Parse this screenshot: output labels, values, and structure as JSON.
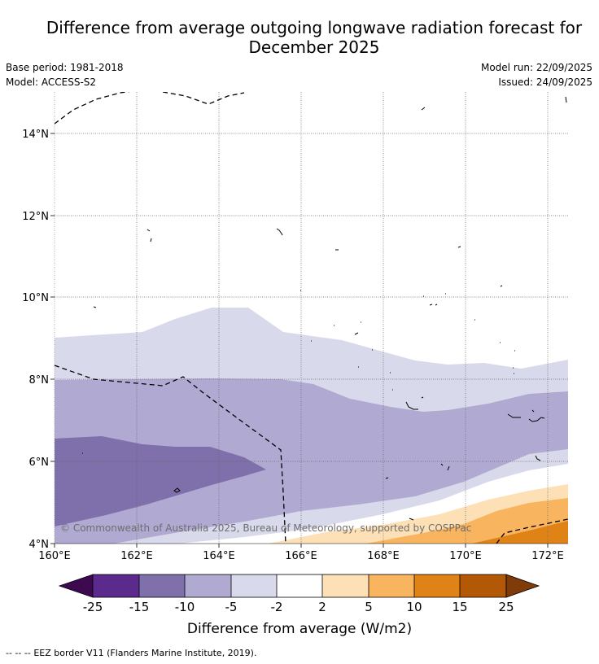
{
  "header": {
    "title_line1": "Difference from average outgoing longwave radiation forecast for",
    "title_line2": "December 2025",
    "base_period": "Base period: 1981-2018",
    "model": "Model: ACCESS-S2",
    "model_run": "Model run: 22/09/2025",
    "issued": "Issued: 24/09/2025"
  },
  "map": {
    "lon_labels": [
      "160°E",
      "162°E",
      "164°E",
      "166°E",
      "168°E",
      "170°E",
      "172°E"
    ],
    "lat_labels": [
      "4°N",
      "6°N",
      "8°N",
      "10°N",
      "12°N",
      "14°N"
    ],
    "copyright": "© Commonwealth of Australia 2025, Bureau of Meteorology, supported by COSPPac"
  },
  "colorbar": {
    "tick_labels": [
      "-25",
      "-15",
      "-10",
      "-5",
      "-2",
      "2",
      "5",
      "10",
      "15",
      "25"
    ],
    "colors": [
      "#3d0a52",
      "#5c2a8c",
      "#7f6fab",
      "#b0a9d2",
      "#d9d9ec",
      "#ffffff",
      "#fde0b5",
      "#f8b45f",
      "#e08317",
      "#b35806",
      "#7f3b08"
    ],
    "label": "Difference from average (W/m2)"
  },
  "legend": {
    "eez_symbol": "-- -- --",
    "eez_text": "EEZ border V11 (Flanders Marine Institute, 2019)."
  }
}
